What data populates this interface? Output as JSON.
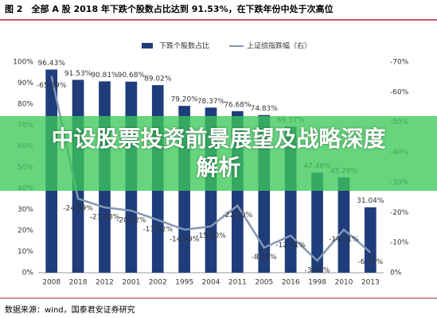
{
  "chart_data": {
    "type": "bar_line",
    "title": "图 2　全部 A 股 2018 年下跌个股数占比达到 91.53%，在下跌年份中处于次高位",
    "source": "数据来源：wind，国泰君安证券研究",
    "categories": [
      "2008",
      "2018",
      "2012",
      "2001",
      "2002",
      "1995",
      "2004",
      "2011",
      "2005",
      "2016",
      "1998",
      "2010",
      "2013"
    ],
    "series": [
      {
        "name": "下跌个股数占比",
        "color": "#1f3d7a",
        "type": "bar",
        "values": [
          96.43,
          91.53,
          90.81,
          90.68,
          89.02,
          79.2,
          78.37,
          76.68,
          74.83,
          69.37,
          47.46,
          45.28,
          31.04
        ],
        "value_labels": [
          "96.43%",
          "91.53%",
          "90.81%",
          "90.68%",
          "89.02%",
          "79.20%",
          "78.37%",
          "76.68%",
          "74.83%",
          "69.37%",
          "47.46%",
          "45.28%",
          "31.04%"
        ]
      },
      {
        "name": "上证综指跌幅（右）",
        "color": "#8297b3",
        "type": "line",
        "axis": "y2",
        "values": [
          -65.39,
          -24.59,
          -21.68,
          -20.62,
          -17.52,
          -14.29,
          -15.4,
          -22.3,
          -8.33,
          -12.31,
          -3.97,
          -14.31,
          -6.75
        ],
        "value_labels": [
          "-65.39%",
          "-24.59%",
          "-21.68%",
          "-20.62%",
          "-17.52%",
          "-14.29%",
          "-15.40%",
          "-22.30%",
          "-8.33%",
          "-12.31%",
          "-3.97%",
          "-14.31%",
          "-6.75%"
        ]
      }
    ],
    "ylim": [
      0,
      100
    ],
    "yticks": [
      {
        "value": 0,
        "label": "0%"
      },
      {
        "value": 10,
        "label": "10%"
      },
      {
        "value": 20,
        "label": "20%"
      },
      {
        "value": 30,
        "label": "30%"
      },
      {
        "value": 40,
        "label": "40%"
      },
      {
        "value": 50,
        "label": "50%"
      },
      {
        "value": 60,
        "label": "60%"
      },
      {
        "value": 70,
        "label": "70%"
      },
      {
        "value": 80,
        "label": "80%"
      },
      {
        "value": 90,
        "label": "90%"
      },
      {
        "value": 100,
        "label": "100%"
      }
    ],
    "y2lim": [
      0,
      -70
    ],
    "y2ticks": [
      {
        "value": 0,
        "label": "0%"
      },
      {
        "value": -10,
        "label": "-10%"
      },
      {
        "value": -20,
        "label": "-20%"
      },
      {
        "value": -30,
        "label": "-30%"
      },
      {
        "value": -40,
        "label": "-40%"
      },
      {
        "value": -50,
        "label": "-50%"
      },
      {
        "value": -60,
        "label": "-60%"
      },
      {
        "value": -70,
        "label": "-70%"
      }
    ],
    "legend": "top"
  },
  "banner": "中设股票投资前景展望及战略深度解析"
}
